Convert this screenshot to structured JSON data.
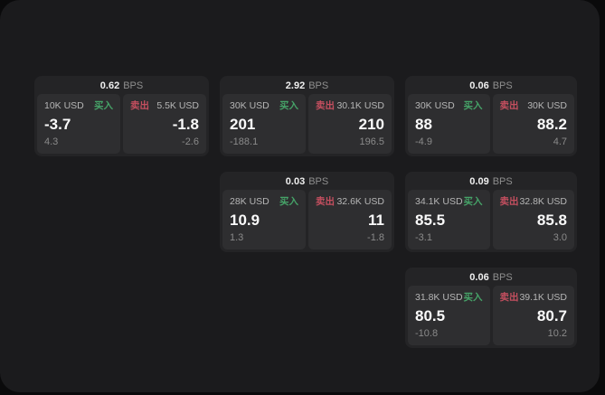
{
  "labels": {
    "bps_unit": "BPS",
    "buy": "买入",
    "sell": "卖出"
  },
  "colors": {
    "buy_green": "#46a368",
    "sell_red": "#c44f5f",
    "panel_bg": "#1b1b1d",
    "card_bg": "#242426",
    "pane_bg": "#2e2e30"
  },
  "grid": {
    "rows": 3,
    "columns": 3
  },
  "cards": [
    {
      "row": 0,
      "col": 0,
      "bps": "0.62",
      "buy": {
        "amount": "10K USD",
        "price": "-3.7",
        "delta": "4.3"
      },
      "sell": {
        "amount": "5.5K USD",
        "price": "-1.8",
        "delta": "-2.6"
      }
    },
    {
      "row": 0,
      "col": 1,
      "bps": "2.92",
      "buy": {
        "amount": "30K USD",
        "price": "201",
        "delta": "-188.1"
      },
      "sell": {
        "amount": "30.1K USD",
        "price": "210",
        "delta": "196.5"
      }
    },
    {
      "row": 0,
      "col": 2,
      "bps": "0.06",
      "buy": {
        "amount": "30K USD",
        "price": "88",
        "delta": "-4.9"
      },
      "sell": {
        "amount": "30K USD",
        "price": "88.2",
        "delta": "4.7"
      }
    },
    {
      "row": 1,
      "col": 1,
      "bps": "0.03",
      "buy": {
        "amount": "28K USD",
        "price": "10.9",
        "delta": "1.3"
      },
      "sell": {
        "amount": "32.6K USD",
        "price": "11",
        "delta": "-1.8"
      }
    },
    {
      "row": 1,
      "col": 2,
      "bps": "0.09",
      "buy": {
        "amount": "34.1K USD",
        "price": "85.5",
        "delta": "-3.1"
      },
      "sell": {
        "amount": "32.8K USD",
        "price": "85.8",
        "delta": "3.0"
      }
    },
    {
      "row": 2,
      "col": 2,
      "bps": "0.06",
      "buy": {
        "amount": "31.8K USD",
        "price": "80.5",
        "delta": "-10.8"
      },
      "sell": {
        "amount": "39.1K USD",
        "price": "80.7",
        "delta": "10.2"
      }
    }
  ]
}
